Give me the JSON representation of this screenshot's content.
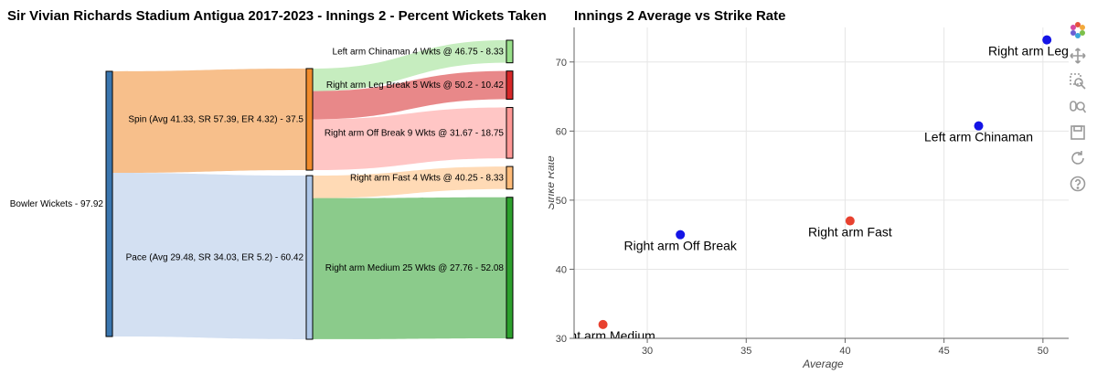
{
  "chart_data": [
    {
      "type": "sankey",
      "title": "Sir Vivian Richards Stadium Antigua 2017-2023 - Innings 2 - Percent Wickets Taken by Bow",
      "nodes": [
        {
          "id": "total",
          "label": "Bowler Wickets - 97.92",
          "value": 97.92,
          "color": "#3a76af",
          "level": 0
        },
        {
          "id": "spin",
          "label": "Spin (Avg 41.33, SR 57.39, ER 4.32) - 37.5",
          "value": 37.5,
          "color": "#f18b2c",
          "level": 1
        },
        {
          "id": "pace",
          "label": "Pace (Avg 29.48, SR 34.03, ER 5.2) - 60.42",
          "value": 60.42,
          "color": "#aec7e8",
          "level": 1
        },
        {
          "id": "lac",
          "label": "Left arm Chinaman 4 Wkts @ 46.75 - 8.33",
          "value": 8.33,
          "color": "#98df8a",
          "level": 2
        },
        {
          "id": "rlb",
          "label": "Right arm Leg Break 5 Wkts @ 50.2 - 10.42",
          "value": 10.42,
          "color": "#d62728",
          "level": 2
        },
        {
          "id": "rob",
          "label": "Right arm Off Break 9 Wkts @ 31.67 - 18.75",
          "value": 18.75,
          "color": "#ff9896",
          "level": 2
        },
        {
          "id": "raf",
          "label": "Right arm Fast 4 Wkts @ 40.25 - 8.33",
          "value": 8.33,
          "color": "#ffbb78",
          "level": 2
        },
        {
          "id": "ram",
          "label": "Right arm Medium 25 Wkts @ 27.76 - 52.08",
          "value": 52.08,
          "color": "#2ca02c",
          "level": 2
        }
      ],
      "links": [
        {
          "source": "total",
          "target": "spin",
          "value": 37.5,
          "color": "#f18b2c"
        },
        {
          "source": "total",
          "target": "pace",
          "value": 60.42,
          "color": "#aec7e8"
        },
        {
          "source": "spin",
          "target": "lac",
          "value": 8.33,
          "color": "#98df8a"
        },
        {
          "source": "spin",
          "target": "rlb",
          "value": 10.42,
          "color": "#d62728"
        },
        {
          "source": "spin",
          "target": "rob",
          "value": 18.75,
          "color": "#ff9896"
        },
        {
          "source": "pace",
          "target": "raf",
          "value": 8.33,
          "color": "#ffbb78"
        },
        {
          "source": "pace",
          "target": "ram",
          "value": 52.08,
          "color": "#2ca02c"
        }
      ]
    },
    {
      "type": "scatter",
      "title": "Innings 2 Average vs Strike Rate",
      "xlabel": "Average",
      "ylabel": "Strike Rate",
      "xlim": [
        26.3,
        51.3
      ],
      "ylim": [
        30,
        75
      ],
      "xticks": [
        "30",
        "35",
        "40",
        "45",
        "50"
      ],
      "yticks": [
        "30",
        "40",
        "50",
        "60",
        "70"
      ],
      "grid": true,
      "points": [
        {
          "label": "Right arm Medium",
          "x": 27.76,
          "y": 32.0,
          "color": "#e8412f"
        },
        {
          "label": "Right arm Off Break",
          "x": 31.67,
          "y": 45.0,
          "color": "#1414e6"
        },
        {
          "label": "Right arm Fast",
          "x": 40.25,
          "y": 47.0,
          "color": "#e8412f"
        },
        {
          "label": "Left arm Chinaman",
          "x": 46.75,
          "y": 60.75,
          "color": "#1414e6"
        },
        {
          "label": "Right arm Leg Break",
          "x": 50.2,
          "y": 73.2,
          "color": "#1414e6"
        }
      ]
    }
  ],
  "toolbar": {
    "tools": [
      "bokeh-logo-icon",
      "pan-icon",
      "box-zoom-icon",
      "wheel-zoom-icon",
      "save-icon",
      "reset-icon",
      "help-icon"
    ]
  }
}
